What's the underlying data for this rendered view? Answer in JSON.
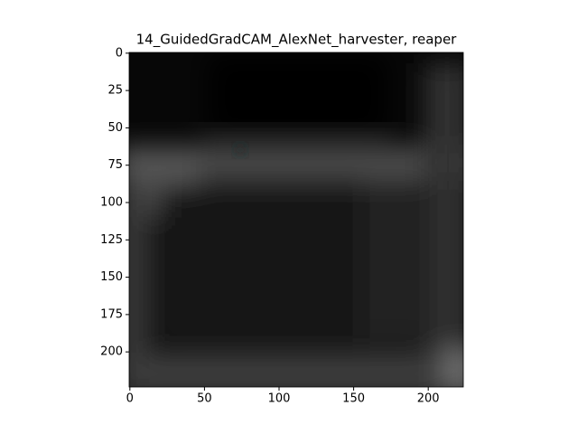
{
  "chart_data": {
    "type": "image",
    "title": "14_GuidedGradCAM_AlexNet_harvester, reaper",
    "xlim": [
      -0.5,
      223.5
    ],
    "ylim": [
      223.5,
      -0.5
    ],
    "xticks": [
      0,
      50,
      100,
      150,
      200
    ],
    "yticks": [
      0,
      25,
      50,
      75,
      100,
      125,
      150,
      175,
      200
    ]
  }
}
